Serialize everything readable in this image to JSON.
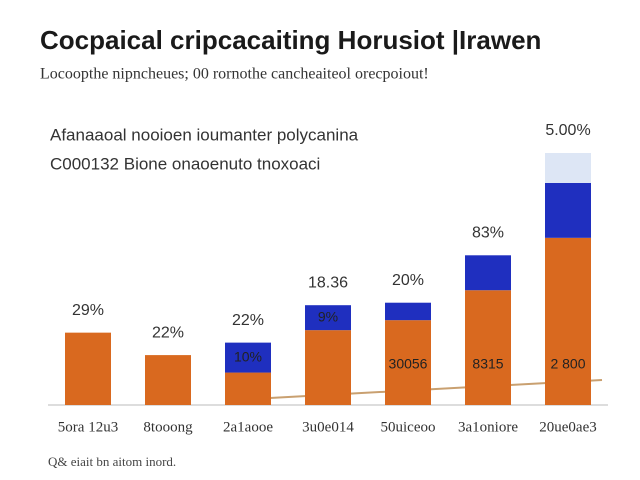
{
  "chart_data": {
    "type": "stacked-bar",
    "title": "Cocpaical cripcacaiting Horusiot |Irawen",
    "subtitle": "Locoopthe nipncheues; 00 rornothe cancheaiteol orecpoiout!",
    "annotations": [
      "Afanaaoal nooioen ioumanter polycanina",
      "C000132 Bione onaoenuto tnoxoaci"
    ],
    "footnote": "Q& eiait bn aitom inord.",
    "categories": [
      "5ora 12u3",
      "8tooong",
      "2a1aooe",
      "3u0e014",
      "50uiceoo",
      "3a1oniore",
      "20ue0ae3"
    ],
    "top_labels": [
      "29%",
      "22%",
      "22%",
      "18.36",
      "20%",
      "83%",
      "5.00%"
    ],
    "inner_labels": [
      null,
      null,
      "10%",
      "9%",
      "30056",
      "8315",
      "2 800"
    ],
    "series": [
      {
        "color": "#d9691f",
        "values": [
          29,
          20,
          13,
          30,
          34,
          46,
          67
        ]
      },
      {
        "color": "#1f2fbf",
        "values": [
          null,
          null,
          12,
          10,
          7,
          14,
          22
        ]
      },
      {
        "color": "#dde6f5",
        "values": [
          null,
          null,
          null,
          null,
          null,
          null,
          12
        ]
      }
    ]
  }
}
